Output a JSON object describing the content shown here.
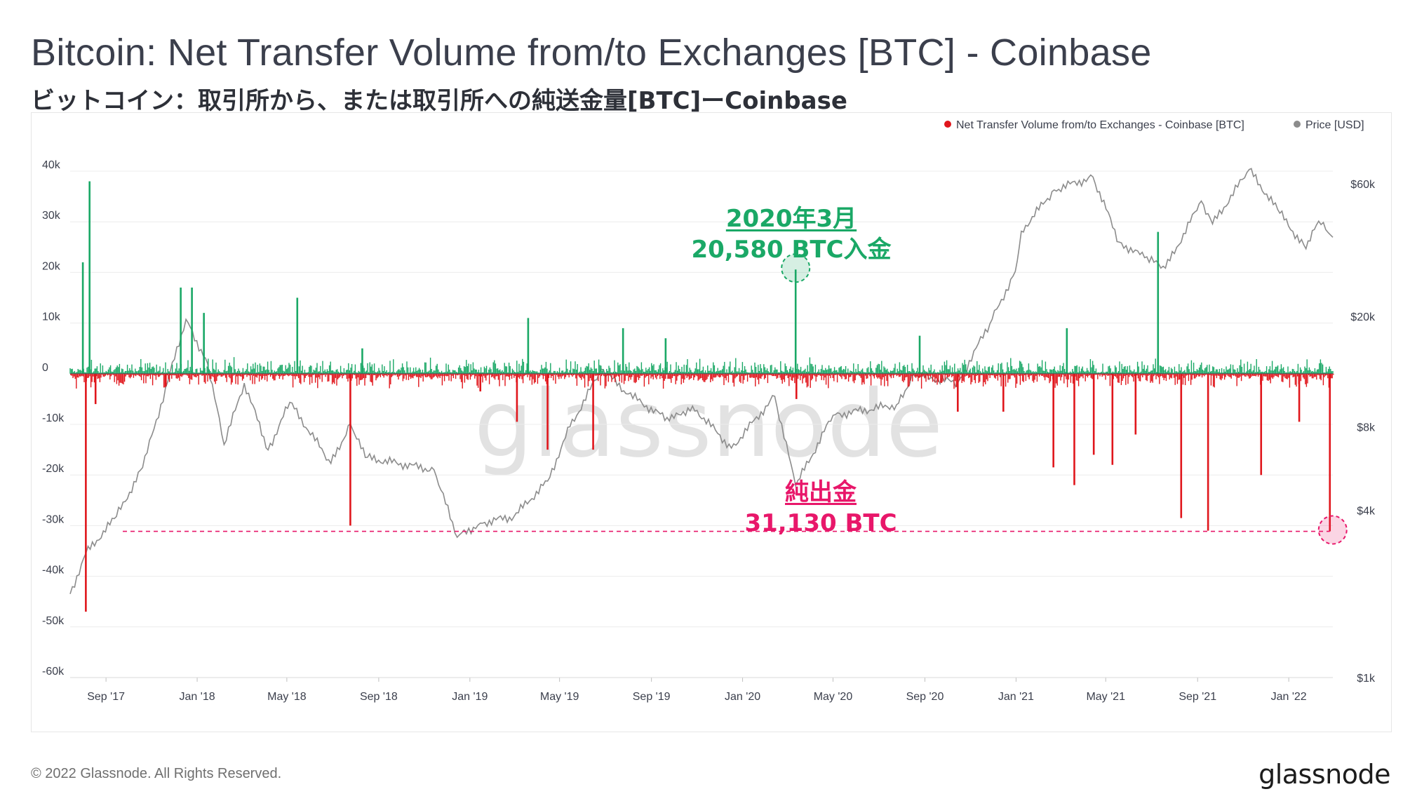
{
  "title": "Bitcoin: Net Transfer Volume from/to Exchanges [BTC] - Coinbase",
  "subtitle": "ビットコイン：取引所から、または取引所への純送金量[BTC]ーCoinbase",
  "copyright": "© 2022 Glassnode. All Rights Reserved.",
  "brand": "glassnode",
  "watermark": "glassnode",
  "annotations": {
    "inflow": {
      "line1": "2020年3月",
      "line2": "20,580 BTC入金"
    },
    "outflow": {
      "line1": "純出金",
      "line2": "31,130 BTC"
    }
  },
  "colors": {
    "positive": "#1aa866",
    "negative": "#e0161c",
    "price": "#8c8c8c",
    "annotation_green": "#1aa866",
    "annotation_pink": "#e8176a"
  },
  "chart_data": {
    "type": "bar",
    "legend": [
      {
        "name": "Net Transfer Volume from/to Exchanges - Coinbase [BTC]",
        "color": "#e0161c"
      },
      {
        "name": "Price [USD]",
        "color": "#8c8c8c"
      }
    ],
    "legend_position": "top-right",
    "x_ticks": [
      "Sep '17",
      "Jan '18",
      "May '18",
      "Sep '18",
      "Jan '19",
      "May '19",
      "Sep '19",
      "Jan '20",
      "May '20",
      "Sep '20",
      "Jan '21",
      "May '21",
      "Sep '21",
      "Jan '22"
    ],
    "x_range": [
      "2017-07-15",
      "2022-03-01"
    ],
    "y_left": {
      "ticks": [
        "40k",
        "30k",
        "20k",
        "10k",
        "0",
        "-10k",
        "-20k",
        "-30k",
        "-40k",
        "-50k",
        "-60k"
      ],
      "range": [
        -60000,
        40000
      ]
    },
    "y_right": {
      "ticks": [
        "$60k",
        "$20k",
        "$8k",
        "$4k",
        "$1k"
      ],
      "tick_values": [
        60000,
        20000,
        8000,
        4000,
        1000
      ],
      "scale": "log"
    },
    "grid": true,
    "net_transfer_spikes": [
      {
        "date": "2017-08-01",
        "value": 22000
      },
      {
        "date": "2017-08-10",
        "value": 38000
      },
      {
        "date": "2017-08-05",
        "value": -47000
      },
      {
        "date": "2017-08-18",
        "value": -6000
      },
      {
        "date": "2017-11-20",
        "value": -2500
      },
      {
        "date": "2017-12-10",
        "value": 17000
      },
      {
        "date": "2017-12-25",
        "value": 17000
      },
      {
        "date": "2018-01-10",
        "value": 12000
      },
      {
        "date": "2018-05-15",
        "value": 15000
      },
      {
        "date": "2018-07-25",
        "value": -30000
      },
      {
        "date": "2018-08-10",
        "value": 5000
      },
      {
        "date": "2019-01-15",
        "value": -3500
      },
      {
        "date": "2019-03-05",
        "value": -9500
      },
      {
        "date": "2019-03-20",
        "value": 11000
      },
      {
        "date": "2019-04-15",
        "value": -15000
      },
      {
        "date": "2019-06-15",
        "value": -15000
      },
      {
        "date": "2019-07-25",
        "value": 9000
      },
      {
        "date": "2019-09-20",
        "value": 7000
      },
      {
        "date": "2020-03-12",
        "value": 20580
      },
      {
        "date": "2020-03-13",
        "value": -5000
      },
      {
        "date": "2020-08-25",
        "value": 7500
      },
      {
        "date": "2020-10-15",
        "value": -7500
      },
      {
        "date": "2020-12-15",
        "value": -7500
      },
      {
        "date": "2021-02-20",
        "value": -18500
      },
      {
        "date": "2021-03-10",
        "value": 9000
      },
      {
        "date": "2021-03-20",
        "value": -22000
      },
      {
        "date": "2021-04-15",
        "value": -16000
      },
      {
        "date": "2021-05-10",
        "value": -18000
      },
      {
        "date": "2021-06-10",
        "value": -12000
      },
      {
        "date": "2021-07-10",
        "value": 28000
      },
      {
        "date": "2021-08-10",
        "value": -28500
      },
      {
        "date": "2021-09-15",
        "value": -31000
      },
      {
        "date": "2021-11-25",
        "value": -20000
      },
      {
        "date": "2022-01-15",
        "value": -9500
      },
      {
        "date": "2022-02-25",
        "value": -31130
      }
    ],
    "price_usd": [
      {
        "date": "2017-07-15",
        "value": 2000
      },
      {
        "date": "2017-08-05",
        "value": 2800
      },
      {
        "date": "2017-09-15",
        "value": 3800
      },
      {
        "date": "2017-10-20",
        "value": 5700
      },
      {
        "date": "2017-12-17",
        "value": 19500
      },
      {
        "date": "2018-01-15",
        "value": 13500
      },
      {
        "date": "2018-02-06",
        "value": 6900
      },
      {
        "date": "2018-03-05",
        "value": 11500
      },
      {
        "date": "2018-04-06",
        "value": 6600
      },
      {
        "date": "2018-05-05",
        "value": 9800
      },
      {
        "date": "2018-06-29",
        "value": 5900
      },
      {
        "date": "2018-07-25",
        "value": 8200
      },
      {
        "date": "2018-08-14",
        "value": 6200
      },
      {
        "date": "2018-11-14",
        "value": 5600
      },
      {
        "date": "2018-12-15",
        "value": 3200
      },
      {
        "date": "2019-01-15",
        "value": 3600
      },
      {
        "date": "2019-03-01",
        "value": 3800
      },
      {
        "date": "2019-04-15",
        "value": 5100
      },
      {
        "date": "2019-05-15",
        "value": 8000
      },
      {
        "date": "2019-06-26",
        "value": 12900
      },
      {
        "date": "2019-08-01",
        "value": 10500
      },
      {
        "date": "2019-09-25",
        "value": 8400
      },
      {
        "date": "2019-10-26",
        "value": 9500
      },
      {
        "date": "2019-12-17",
        "value": 6700
      },
      {
        "date": "2020-02-13",
        "value": 10300
      },
      {
        "date": "2020-03-12",
        "value": 4900
      },
      {
        "date": "2020-05-01",
        "value": 8800
      },
      {
        "date": "2020-07-25",
        "value": 9600
      },
      {
        "date": "2020-08-17",
        "value": 12300
      },
      {
        "date": "2020-10-15",
        "value": 11500
      },
      {
        "date": "2020-11-30",
        "value": 19500
      },
      {
        "date": "2020-12-31",
        "value": 29000
      },
      {
        "date": "2021-01-08",
        "value": 40500
      },
      {
        "date": "2021-02-21",
        "value": 57000
      },
      {
        "date": "2021-04-14",
        "value": 63500
      },
      {
        "date": "2021-05-19",
        "value": 37000
      },
      {
        "date": "2021-06-22",
        "value": 32500
      },
      {
        "date": "2021-07-20",
        "value": 29800
      },
      {
        "date": "2021-09-06",
        "value": 52000
      },
      {
        "date": "2021-09-21",
        "value": 43000
      },
      {
        "date": "2021-11-09",
        "value": 67500
      },
      {
        "date": "2021-12-20",
        "value": 47000
      },
      {
        "date": "2022-01-24",
        "value": 35000
      },
      {
        "date": "2022-02-10",
        "value": 44000
      },
      {
        "date": "2022-03-01",
        "value": 38500
      }
    ]
  }
}
